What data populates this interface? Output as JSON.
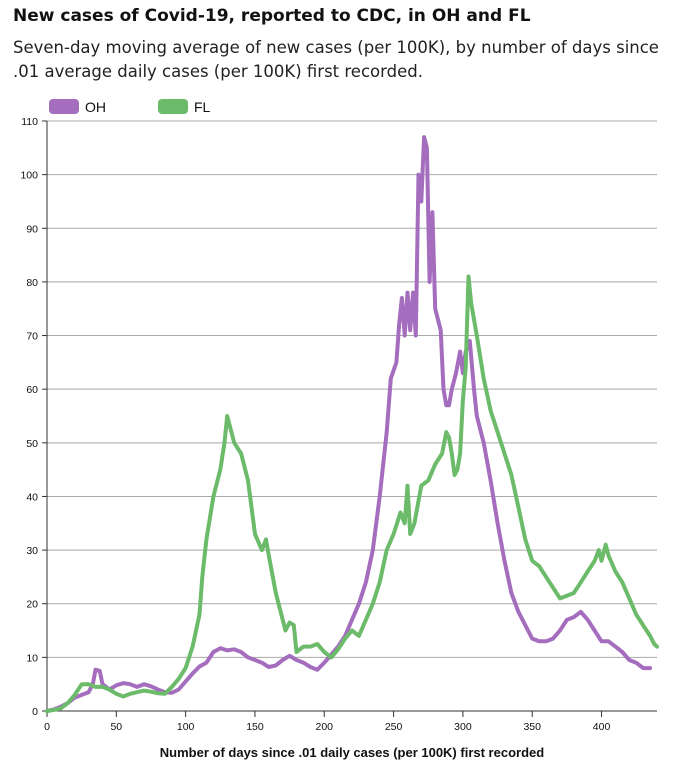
{
  "header": {
    "title": "New cases of Covid-19, reported to CDC, in OH and FL",
    "subtitle": "Seven-day moving average of new cases (per 100K), by number of days since .01 average daily cases (per 100K) first recorded."
  },
  "chart_data": {
    "type": "line",
    "title": "New cases of Covid-19, reported to CDC, in OH and FL",
    "xlabel": "Number of days since .01 daily cases (per 100K) first recorded",
    "ylabel": "",
    "xlim": [
      0,
      440
    ],
    "ylim": [
      0,
      110
    ],
    "xticks": [
      0,
      50,
      100,
      150,
      200,
      250,
      300,
      350,
      400
    ],
    "yticks": [
      0,
      10,
      20,
      30,
      40,
      50,
      60,
      70,
      80,
      90,
      100,
      110
    ],
    "grid": true,
    "legend_position": "top-left",
    "series": [
      {
        "name": "OH",
        "color": "#a56dbd",
        "points": [
          [
            0,
            0
          ],
          [
            5,
            0.3
          ],
          [
            10,
            0.8
          ],
          [
            15,
            1.5
          ],
          [
            20,
            2.5
          ],
          [
            25,
            3
          ],
          [
            30,
            3.5
          ],
          [
            33,
            5
          ],
          [
            35,
            7.7
          ],
          [
            38,
            7.5
          ],
          [
            40,
            5
          ],
          [
            45,
            4
          ],
          [
            50,
            4.8
          ],
          [
            55,
            5.2
          ],
          [
            60,
            5
          ],
          [
            65,
            4.5
          ],
          [
            70,
            5
          ],
          [
            75,
            4.6
          ],
          [
            80,
            4
          ],
          [
            85,
            3.5
          ],
          [
            90,
            3.4
          ],
          [
            95,
            4
          ],
          [
            100,
            5.5
          ],
          [
            105,
            7
          ],
          [
            110,
            8.3
          ],
          [
            115,
            9
          ],
          [
            120,
            11
          ],
          [
            125,
            11.7
          ],
          [
            130,
            11.3
          ],
          [
            135,
            11.5
          ],
          [
            140,
            11
          ],
          [
            145,
            10
          ],
          [
            150,
            9.5
          ],
          [
            155,
            9
          ],
          [
            160,
            8.2
          ],
          [
            165,
            8.5
          ],
          [
            170,
            9.5
          ],
          [
            175,
            10.3
          ],
          [
            180,
            9.5
          ],
          [
            185,
            9
          ],
          [
            190,
            8.2
          ],
          [
            195,
            7.7
          ],
          [
            200,
            9
          ],
          [
            205,
            10.5
          ],
          [
            210,
            12
          ],
          [
            215,
            14
          ],
          [
            220,
            17
          ],
          [
            225,
            20
          ],
          [
            230,
            24
          ],
          [
            235,
            30
          ],
          [
            240,
            40
          ],
          [
            245,
            52
          ],
          [
            248,
            62
          ],
          [
            252,
            65
          ],
          [
            254,
            72
          ],
          [
            256,
            77
          ],
          [
            258,
            70
          ],
          [
            260,
            78
          ],
          [
            262,
            71
          ],
          [
            264,
            78
          ],
          [
            266,
            70
          ],
          [
            268,
            100
          ],
          [
            270,
            95
          ],
          [
            272,
            107
          ],
          [
            274,
            105
          ],
          [
            276,
            80
          ],
          [
            278,
            93
          ],
          [
            280,
            75
          ],
          [
            284,
            71
          ],
          [
            286,
            60
          ],
          [
            288,
            57
          ],
          [
            290,
            57
          ],
          [
            292,
            60
          ],
          [
            295,
            63
          ],
          [
            298,
            67
          ],
          [
            300,
            63
          ],
          [
            302,
            67
          ],
          [
            305,
            69
          ],
          [
            308,
            60
          ],
          [
            310,
            55
          ],
          [
            315,
            50
          ],
          [
            320,
            43
          ],
          [
            325,
            35
          ],
          [
            330,
            28
          ],
          [
            335,
            22
          ],
          [
            340,
            18.5
          ],
          [
            345,
            16
          ],
          [
            350,
            13.5
          ],
          [
            355,
            13
          ],
          [
            360,
            13
          ],
          [
            365,
            13.5
          ],
          [
            370,
            15
          ],
          [
            375,
            17
          ],
          [
            380,
            17.5
          ],
          [
            385,
            18.5
          ],
          [
            390,
            17
          ],
          [
            395,
            15
          ],
          [
            400,
            13
          ],
          [
            405,
            13
          ],
          [
            410,
            12
          ],
          [
            415,
            11
          ],
          [
            420,
            9.5
          ],
          [
            425,
            9
          ],
          [
            430,
            8
          ],
          [
            435,
            8
          ]
        ]
      },
      {
        "name": "FL",
        "color": "#6cbb6a",
        "points": [
          [
            0,
            0
          ],
          [
            5,
            0.2
          ],
          [
            10,
            0.5
          ],
          [
            15,
            1.5
          ],
          [
            20,
            3
          ],
          [
            25,
            5
          ],
          [
            30,
            5
          ],
          [
            35,
            4.5
          ],
          [
            40,
            4.5
          ],
          [
            45,
            4
          ],
          [
            50,
            3.2
          ],
          [
            55,
            2.7
          ],
          [
            60,
            3.2
          ],
          [
            65,
            3.5
          ],
          [
            70,
            3.8
          ],
          [
            75,
            3.6
          ],
          [
            80,
            3.3
          ],
          [
            85,
            3.2
          ],
          [
            90,
            4.5
          ],
          [
            95,
            6
          ],
          [
            100,
            8
          ],
          [
            105,
            12
          ],
          [
            110,
            18
          ],
          [
            112,
            25
          ],
          [
            115,
            32
          ],
          [
            120,
            40
          ],
          [
            125,
            45
          ],
          [
            128,
            50
          ],
          [
            130,
            55
          ],
          [
            132,
            53
          ],
          [
            135,
            50
          ],
          [
            140,
            48
          ],
          [
            145,
            43
          ],
          [
            150,
            33
          ],
          [
            155,
            30
          ],
          [
            158,
            32
          ],
          [
            160,
            29
          ],
          [
            165,
            22
          ],
          [
            170,
            17
          ],
          [
            172,
            15
          ],
          [
            175,
            16.5
          ],
          [
            178,
            16
          ],
          [
            180,
            11
          ],
          [
            185,
            12
          ],
          [
            190,
            12
          ],
          [
            195,
            12.5
          ],
          [
            200,
            11
          ],
          [
            205,
            10
          ],
          [
            210,
            11.5
          ],
          [
            215,
            13.5
          ],
          [
            220,
            15
          ],
          [
            225,
            14
          ],
          [
            230,
            17
          ],
          [
            235,
            20
          ],
          [
            240,
            24
          ],
          [
            245,
            30
          ],
          [
            250,
            33
          ],
          [
            255,
            37
          ],
          [
            258,
            35
          ],
          [
            260,
            42
          ],
          [
            262,
            33
          ],
          [
            265,
            35
          ],
          [
            270,
            42
          ],
          [
            275,
            43
          ],
          [
            280,
            46
          ],
          [
            285,
            48
          ],
          [
            288,
            52
          ],
          [
            290,
            51
          ],
          [
            292,
            48
          ],
          [
            294,
            44
          ],
          [
            296,
            45
          ],
          [
            298,
            48
          ],
          [
            300,
            58
          ],
          [
            302,
            64
          ],
          [
            304,
            81
          ],
          [
            306,
            76
          ],
          [
            308,
            73
          ],
          [
            310,
            70
          ],
          [
            315,
            62
          ],
          [
            320,
            56
          ],
          [
            325,
            52
          ],
          [
            330,
            48
          ],
          [
            335,
            44
          ],
          [
            340,
            38
          ],
          [
            345,
            32
          ],
          [
            350,
            28
          ],
          [
            355,
            27
          ],
          [
            360,
            25
          ],
          [
            365,
            23
          ],
          [
            370,
            21
          ],
          [
            375,
            21.5
          ],
          [
            380,
            22
          ],
          [
            385,
            24
          ],
          [
            390,
            26
          ],
          [
            395,
            28
          ],
          [
            398,
            30
          ],
          [
            400,
            28
          ],
          [
            403,
            31
          ],
          [
            405,
            29
          ],
          [
            410,
            26
          ],
          [
            415,
            24
          ],
          [
            420,
            21
          ],
          [
            425,
            18
          ],
          [
            430,
            16
          ],
          [
            435,
            14
          ],
          [
            438,
            12.5
          ],
          [
            440,
            12
          ]
        ]
      }
    ]
  }
}
